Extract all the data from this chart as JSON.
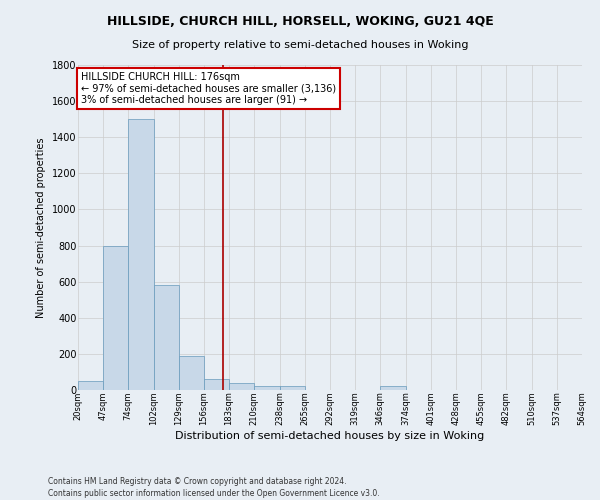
{
  "title1": "HILLSIDE, CHURCH HILL, HORSELL, WOKING, GU21 4QE",
  "title2": "Size of property relative to semi-detached houses in Woking",
  "xlabel": "Distribution of semi-detached houses by size in Woking",
  "ylabel": "Number of semi-detached properties",
  "footnote": "Contains HM Land Registry data © Crown copyright and database right 2024.\nContains public sector information licensed under the Open Government Licence v3.0.",
  "bar_left_edges": [
    20,
    47,
    74,
    102,
    129,
    156,
    183,
    210,
    238,
    265,
    292,
    319,
    346,
    374,
    401,
    428,
    455,
    482,
    510,
    537
  ],
  "bar_widths": [
    27,
    27,
    28,
    27,
    27,
    27,
    27,
    28,
    27,
    27,
    27,
    27,
    28,
    27,
    27,
    27,
    27,
    28,
    27,
    27
  ],
  "bar_heights": [
    50,
    800,
    1500,
    580,
    190,
    60,
    40,
    20,
    20,
    0,
    0,
    0,
    20,
    0,
    0,
    0,
    0,
    0,
    0,
    0
  ],
  "bar_color": "#c8d8e8",
  "bar_edge_color": "#6699bb",
  "subject_line_x": 176,
  "subject_line_color": "#aa0000",
  "annotation_text": "HILLSIDE CHURCH HILL: 176sqm\n← 97% of semi-detached houses are smaller (3,136)\n3% of semi-detached houses are larger (91) →",
  "annotation_box_color": "#ffffff",
  "annotation_box_edge_color": "#cc0000",
  "ylim": [
    0,
    1800
  ],
  "xlim": [
    20,
    564
  ],
  "yticks": [
    0,
    200,
    400,
    600,
    800,
    1000,
    1200,
    1400,
    1600,
    1800
  ],
  "xtick_labels": [
    "20sqm",
    "47sqm",
    "74sqm",
    "102sqm",
    "129sqm",
    "156sqm",
    "183sqm",
    "210sqm",
    "238sqm",
    "265sqm",
    "292sqm",
    "319sqm",
    "346sqm",
    "374sqm",
    "401sqm",
    "428sqm",
    "455sqm",
    "482sqm",
    "510sqm",
    "537sqm",
    "564sqm"
  ],
  "xtick_positions": [
    20,
    47,
    74,
    102,
    129,
    156,
    183,
    210,
    238,
    265,
    292,
    319,
    346,
    374,
    401,
    428,
    455,
    482,
    510,
    537,
    564
  ],
  "grid_color": "#cccccc",
  "background_color": "#e8eef4"
}
